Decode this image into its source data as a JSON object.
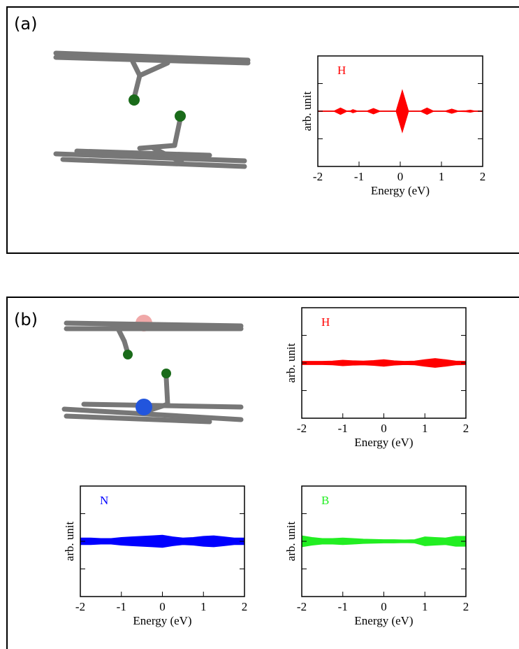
{
  "panel_labels": [
    "(a)",
    "(b)"
  ],
  "chart_data": [
    {
      "type": "area",
      "xlabel": "Energy (eV)",
      "ylabel": "arb. unit",
      "x": [
        -2,
        -1.6,
        -1.45,
        -1.3,
        -1.2,
        -1.15,
        -1.05,
        -0.8,
        -0.65,
        -0.5,
        -0.1,
        0.05,
        0.2,
        0.5,
        0.65,
        0.8,
        1.1,
        1.25,
        1.4,
        1.6,
        1.7,
        1.8,
        2
      ],
      "series": [
        {
          "name": "H",
          "color": "#ff0000",
          "values": [
            0.005,
            0.005,
            0.06,
            0.005,
            0.01,
            0.03,
            0.005,
            0.005,
            0.05,
            0.005,
            0.005,
            0.38,
            0.005,
            0.005,
            0.06,
            0.005,
            0.005,
            0.04,
            0.005,
            0.01,
            0.02,
            0.005,
            0.005
          ]
        }
      ],
      "xlim": [
        -2,
        2
      ],
      "xticks": [
        -2,
        -1,
        0,
        1,
        2
      ],
      "ylim": [
        -1,
        1
      ],
      "yticks": [
        -0.5,
        0,
        0.5
      ],
      "show_ytick_labels": false
    },
    {
      "type": "area",
      "xlabel": "Energy (eV)",
      "ylabel": "arb. unit",
      "x": [
        -2,
        -1.75,
        -1.5,
        -1.25,
        -1,
        -0.75,
        -0.5,
        -0.25,
        0,
        0.25,
        0.5,
        0.75,
        1,
        1.25,
        1.5,
        1.75,
        2
      ],
      "series": [
        {
          "name": "H",
          "color": "#ff0000",
          "values": [
            0.03,
            0.03,
            0.03,
            0.035,
            0.05,
            0.04,
            0.035,
            0.045,
            0.06,
            0.04,
            0.03,
            0.035,
            0.06,
            0.08,
            0.06,
            0.035,
            0.03
          ]
        }
      ],
      "xlim": [
        -2,
        2
      ],
      "xticks": [
        -2,
        -1,
        0,
        1,
        2
      ],
      "ylim": [
        -1,
        1
      ],
      "yticks": [
        -0.5,
        0,
        0.5
      ],
      "show_ytick_labels": false
    },
    {
      "type": "area",
      "xlabel": "Energy (eV)",
      "ylabel": "arb. unit",
      "x": [
        -2,
        -1.75,
        -1.5,
        -1.25,
        -1,
        -0.75,
        -0.5,
        -0.25,
        0,
        0.25,
        0.5,
        0.75,
        1,
        1.25,
        1.5,
        1.75,
        2
      ],
      "series": [
        {
          "name": "N",
          "color": "#0000ff",
          "values": [
            0.06,
            0.06,
            0.05,
            0.05,
            0.07,
            0.08,
            0.09,
            0.1,
            0.11,
            0.08,
            0.06,
            0.07,
            0.09,
            0.1,
            0.08,
            0.06,
            0.06
          ]
        }
      ],
      "xlim": [
        -2,
        2
      ],
      "xticks": [
        -2,
        -1,
        0,
        1,
        2
      ],
      "ylim": [
        -1,
        1
      ],
      "yticks": [
        -0.5,
        0,
        0.5
      ],
      "show_ytick_labels": false
    },
    {
      "type": "area",
      "xlabel": "Energy (eV)",
      "ylabel": "arb. unit",
      "x": [
        -2,
        -1.75,
        -1.5,
        -1.25,
        -1,
        -0.75,
        -0.5,
        -0.25,
        0,
        0.25,
        0.5,
        0.75,
        1,
        1.25,
        1.5,
        1.75,
        2
      ],
      "series": [
        {
          "name": "B",
          "color": "#22ee22",
          "values": [
            0.1,
            0.07,
            0.05,
            0.05,
            0.06,
            0.05,
            0.04,
            0.035,
            0.03,
            0.03,
            0.025,
            0.03,
            0.08,
            0.07,
            0.06,
            0.09,
            0.09
          ]
        }
      ],
      "xlim": [
        -2,
        2
      ],
      "xticks": [
        -2,
        -1,
        0,
        1,
        2
      ],
      "ylim": [
        -1,
        1
      ],
      "yticks": [
        -0.5,
        0,
        0.5
      ],
      "show_ytick_labels": false
    }
  ]
}
